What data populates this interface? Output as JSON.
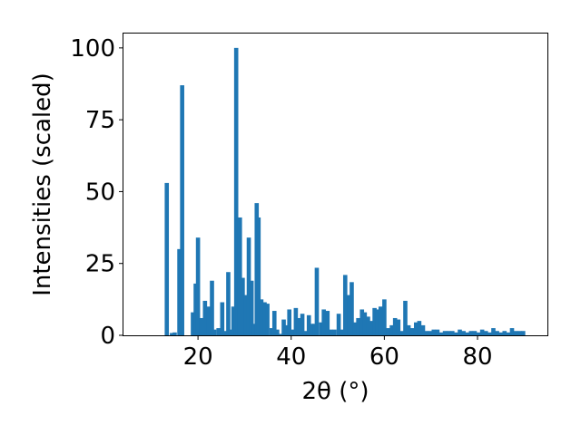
{
  "chart_data": {
    "type": "bar",
    "xlabel": "2θ (°)",
    "ylabel": "Intensities (scaled)",
    "xlim": [
      4,
      95
    ],
    "ylim": [
      0,
      105
    ],
    "xticks": [
      20,
      40,
      60,
      80
    ],
    "yticks": [
      0,
      25,
      50,
      75,
      100
    ],
    "grid": false,
    "bar_color": "#1f77b4",
    "bar_width": 0.9,
    "x": [
      13.3,
      14.4,
      15.0,
      16.0,
      16.6,
      18.9,
      19.5,
      20.0,
      20.7,
      21.5,
      22.3,
      23.0,
      23.5,
      24.4,
      25.2,
      25.8,
      26.5,
      27.0,
      27.6,
      28.2,
      28.5,
      29.0,
      29.6,
      30.2,
      30.9,
      31.5,
      32.0,
      32.6,
      33.0,
      33.6,
      34.3,
      34.9,
      35.8,
      36.4,
      37.0,
      37.6,
      38.4,
      39.0,
      39.6,
      40.4,
      41.0,
      41.6,
      42.4,
      43.0,
      43.8,
      44.4,
      45.0,
      45.5,
      46.4,
      47.0,
      47.8,
      48.5,
      49.3,
      50.2,
      50.8,
      51.6,
      52.4,
      53.0,
      53.6,
      54.4,
      55.2,
      55.8,
      56.5,
      57.2,
      57.9,
      58.5,
      59.2,
      60.0,
      60.8,
      61.6,
      62.3,
      63.0,
      63.8,
      64.5,
      65.2,
      66.0,
      66.8,
      67.5,
      68.3,
      69.0,
      69.8,
      70.6,
      71.4,
      72.2,
      73.0,
      73.8,
      74.6,
      75.4,
      76.2,
      77.0,
      77.8,
      78.6,
      79.4,
      80.2,
      81.0,
      81.8,
      82.6,
      83.4,
      84.2,
      85.0,
      85.8,
      86.6,
      87.4,
      88.2,
      89.0,
      89.8
    ],
    "values": [
      53,
      0.8,
      1,
      30,
      87,
      8,
      18,
      34,
      6,
      12,
      10,
      19,
      2,
      2.5,
      11.5,
      1.5,
      22,
      2,
      10,
      100,
      40,
      41,
      20,
      14,
      34,
      19,
      4,
      46,
      41,
      12.5,
      11.5,
      11,
      2.5,
      8.5,
      2,
      0.5,
      5.5,
      3.5,
      9,
      2,
      9.5,
      6,
      7.5,
      1.5,
      7,
      4,
      4,
      23.5,
      4.5,
      9,
      8.5,
      2,
      2,
      7.5,
      2,
      21,
      14,
      18.5,
      4.5,
      6,
      9,
      8,
      6.5,
      5,
      9.5,
      9,
      10,
      12.5,
      2.5,
      3.5,
      6,
      5.5,
      1.5,
      12,
      3.5,
      2.5,
      4.5,
      5,
      3.5,
      1.5,
      1.5,
      2,
      2,
      1,
      1.5,
      1.5,
      1.5,
      1,
      2,
      1.5,
      1,
      1.5,
      1.5,
      1,
      2,
      1.5,
      1,
      2.5,
      1.5,
      1,
      1.5,
      1,
      2.5,
      1.5,
      1.5,
      1.5
    ]
  }
}
